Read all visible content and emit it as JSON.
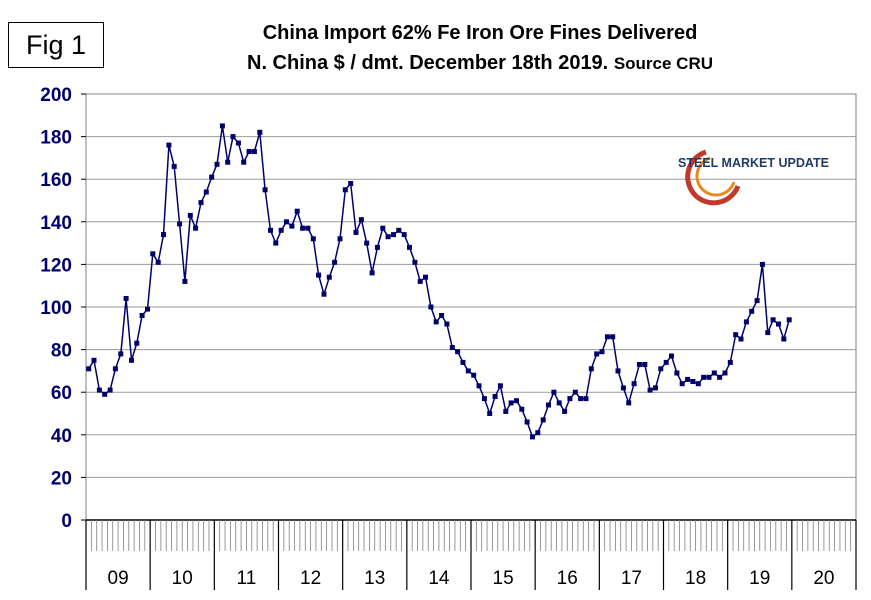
{
  "figure_label": "Fig 1",
  "chart_data": {
    "type": "line",
    "title": "China Import 62% Fe Iron Ore Fines Delivered",
    "subtitle_main": "N. China $ / dmt. December 18th 2019.",
    "subtitle_source": "Source CRU",
    "logo_text": "STEEL MARKET UPDATE",
    "ylim": [
      0,
      200
    ],
    "yticks": [
      0,
      20,
      40,
      60,
      80,
      100,
      120,
      140,
      160,
      180,
      200
    ],
    "xlabel": "",
    "ylabel": "",
    "grid": "horizontal",
    "legend": "none",
    "line_color": "#00006b",
    "year_labels": [
      "09",
      "10",
      "11",
      "12",
      "13",
      "14",
      "15",
      "16",
      "17",
      "18",
      "19",
      "20"
    ],
    "x_start_year": 2009,
    "x_end_year": 2021,
    "series": [
      {
        "values": [
          71,
          75,
          61,
          59,
          61,
          71,
          78,
          104,
          75,
          83,
          96,
          99,
          125,
          121,
          134,
          176,
          166,
          139,
          112,
          143,
          137,
          149,
          154,
          161,
          167,
          185,
          168,
          180,
          177,
          168,
          173,
          173,
          182,
          155,
          136,
          130,
          136,
          140,
          138,
          145,
          137,
          137,
          132,
          115,
          106,
          114,
          121,
          132,
          155,
          158,
          135,
          141,
          130,
          116,
          128,
          137,
          133,
          134,
          136,
          134,
          128,
          121,
          112,
          114,
          100,
          93,
          96,
          92,
          81,
          79,
          74,
          70,
          68,
          63,
          57,
          50,
          58,
          63,
          51,
          55,
          56,
          52,
          46,
          39,
          41,
          47,
          54,
          60,
          55,
          51,
          57,
          60,
          57,
          57,
          71,
          78,
          79,
          86,
          86,
          70,
          62,
          55,
          64,
          73,
          73,
          61,
          62,
          71,
          74,
          77,
          69,
          64,
          66,
          65,
          64,
          67,
          67,
          69,
          67,
          69,
          74,
          87,
          85,
          93,
          98,
          103,
          120,
          88,
          94,
          92,
          85,
          94
        ]
      }
    ]
  }
}
